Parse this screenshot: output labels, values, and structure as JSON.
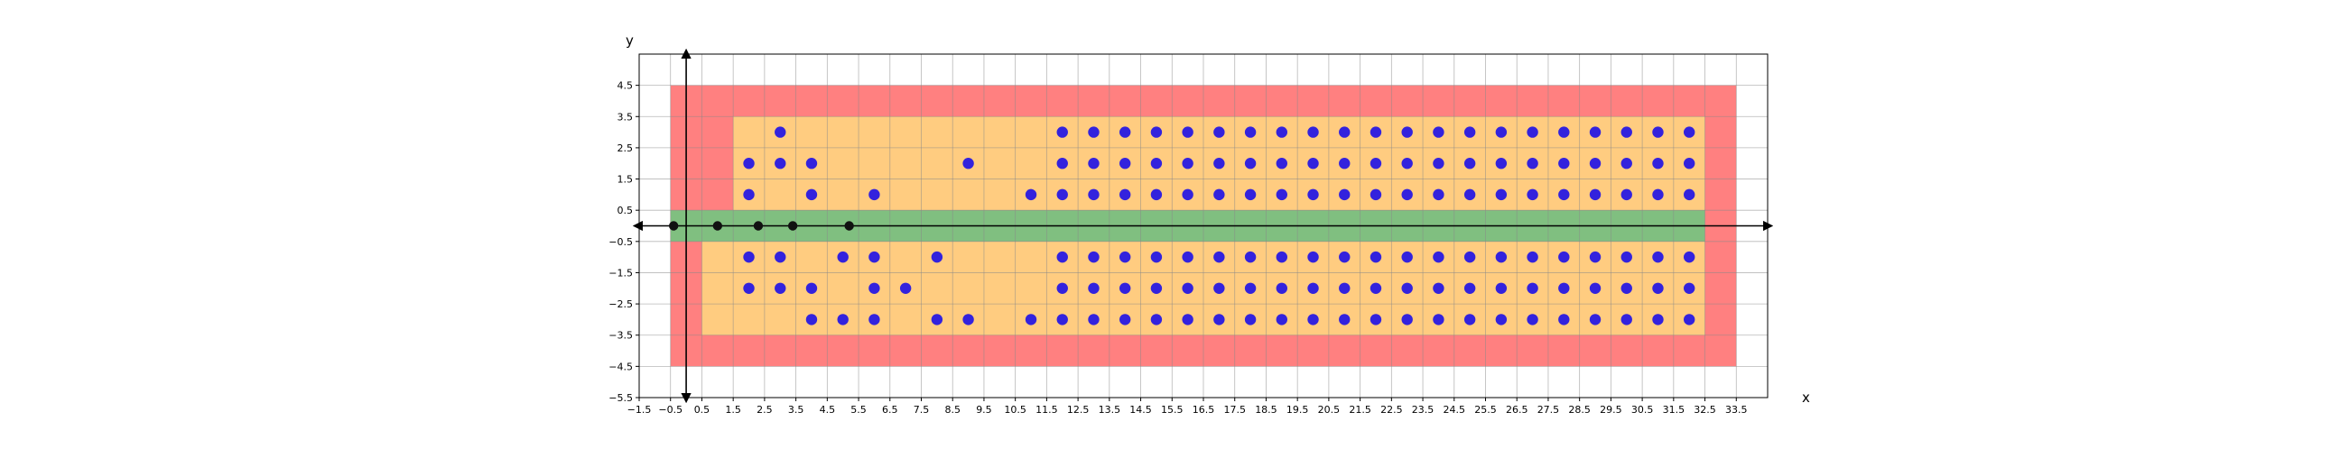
{
  "chart_data": {
    "type": "scatter",
    "title": "",
    "xlabel": "x",
    "ylabel": "y",
    "xlim": [
      -1.5,
      34.5
    ],
    "ylim": [
      -5.5,
      5.5
    ],
    "grid": true,
    "x_ticks": [
      -1.5,
      -0.5,
      0.5,
      1.5,
      2.5,
      3.5,
      4.5,
      5.5,
      6.5,
      7.5,
      8.5,
      9.5,
      10.5,
      11.5,
      12.5,
      13.5,
      14.5,
      15.5,
      16.5,
      17.5,
      18.5,
      19.5,
      20.5,
      21.5,
      22.5,
      23.5,
      24.5,
      25.5,
      26.5,
      27.5,
      28.5,
      29.5,
      30.5,
      31.5,
      32.5,
      33.5
    ],
    "x_tick_labels": [
      "−1.5",
      "−0.5",
      "0.5",
      "1.5",
      "2.5",
      "3.5",
      "4.5",
      "5.5",
      "6.5",
      "7.5",
      "8.5",
      "9.5",
      "10.5",
      "11.5",
      "12.5",
      "13.5",
      "14.5",
      "15.5",
      "16.5",
      "17.5",
      "18.5",
      "19.5",
      "20.5",
      "21.5",
      "22.5",
      "23.5",
      "24.5",
      "25.5",
      "26.5",
      "27.5",
      "28.5",
      "29.5",
      "30.5",
      "31.5",
      "32.5",
      "33.5"
    ],
    "y_ticks": [
      -5.5,
      -4.5,
      -3.5,
      -2.5,
      -1.5,
      -0.5,
      0.5,
      1.5,
      2.5,
      3.5,
      4.5
    ],
    "y_tick_labels": [
      "−5.5",
      "−4.5",
      "−3.5",
      "−2.5",
      "−1.5",
      "−0.5",
      "0.5",
      "1.5",
      "2.5",
      "3.5",
      "4.5"
    ],
    "colors": {
      "outer_region": "#ff8080",
      "inner_region": "#ffcc80",
      "center_band": "#80bf80",
      "blue_points": "#3322dd",
      "black_points": "#111111",
      "grid": "#888888"
    },
    "regions": [
      {
        "kind": "outer",
        "x_range": [
          -0.5,
          33.5
        ],
        "y_range": [
          -4.5,
          4.5
        ]
      },
      {
        "kind": "inner",
        "polygon": [
          [
            1.5,
            3.5
          ],
          [
            32.5,
            3.5
          ],
          [
            32.5,
            0.5
          ],
          [
            0.5,
            0.5
          ],
          [
            0.5,
            -0.5
          ],
          [
            0.5,
            -3.5
          ],
          [
            32.5,
            -3.5
          ],
          [
            32.5,
            -0.5
          ],
          [
            1.5,
            -0.5
          ]
        ]
      },
      {
        "kind": "center",
        "x_range": [
          -0.5,
          32.5
        ],
        "y_range": [
          -0.5,
          0.5
        ]
      }
    ],
    "series": [
      {
        "color": "#3322dd",
        "upper_columns": [
          {
            "x": 2,
            "y": [
              1,
              2
            ]
          },
          {
            "x": 3,
            "y": [
              2,
              3
            ]
          },
          {
            "x": 4,
            "y": [
              1,
              2
            ]
          },
          {
            "x": 6,
            "y": [
              1
            ]
          },
          {
            "x": 9,
            "y": [
              2
            ]
          },
          {
            "x": 11,
            "y": [
              1
            ]
          }
        ],
        "lower_columns": [
          {
            "x": 2,
            "y": [
              -1,
              -2
            ]
          },
          {
            "x": 3,
            "y": [
              -1,
              -2
            ]
          },
          {
            "x": 4,
            "y": [
              -2,
              -3
            ]
          },
          {
            "x": 5,
            "y": [
              -1,
              -3
            ]
          },
          {
            "x": 6,
            "y": [
              -1,
              -2,
              -3
            ]
          },
          {
            "x": 7,
            "y": [
              -2
            ]
          },
          {
            "x": 8,
            "y": [
              -1,
              -3
            ]
          },
          {
            "x": 9,
            "y": [
              -3
            ]
          },
          {
            "x": 11,
            "y": [
              -3
            ]
          }
        ],
        "full_block": {
          "x_from": 12,
          "x_to": 32,
          "y": [
            3,
            2,
            1,
            -1,
            -2,
            -3
          ]
        }
      },
      {
        "color": "#111111",
        "points": [
          [
            -0.4,
            0
          ],
          [
            1,
            0
          ],
          [
            2.3,
            0
          ],
          [
            3.4,
            0
          ],
          [
            5.2,
            0
          ]
        ]
      }
    ]
  }
}
